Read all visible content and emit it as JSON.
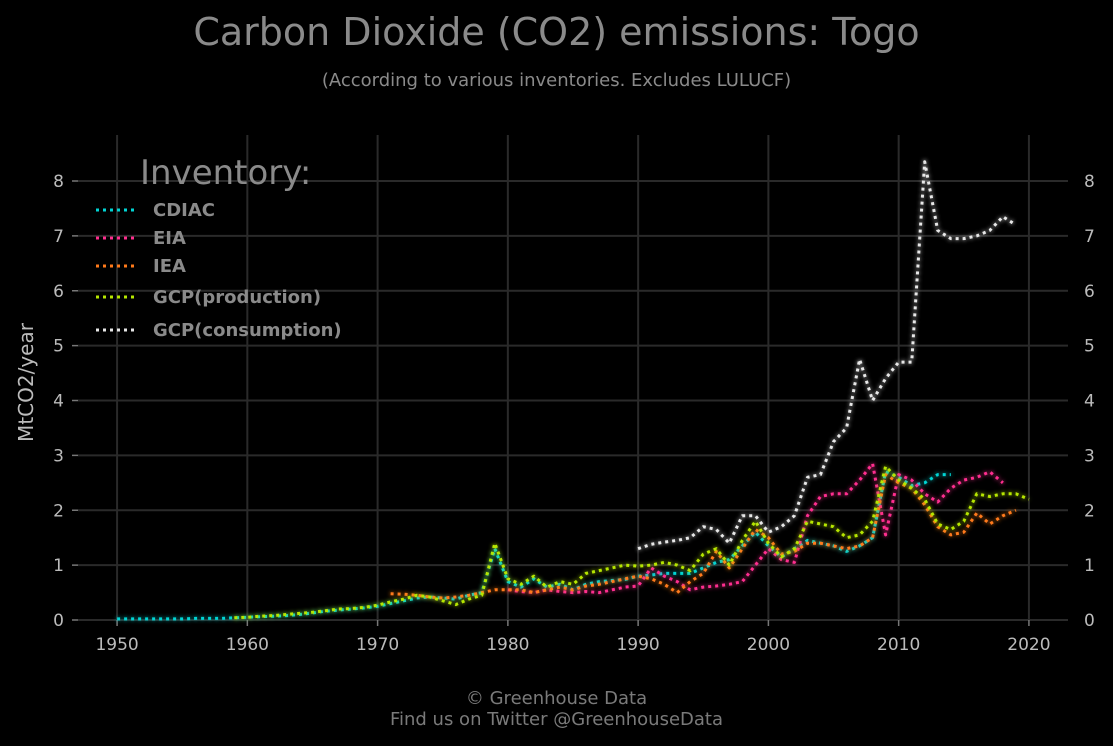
{
  "header": {
    "title": "Carbon Dioxide (CO2) emissions: Togo",
    "subtitle": "(According to various inventories. Excludes LULUCF)"
  },
  "footer": {
    "line1": "© Greenhouse Data",
    "line2": "Find us on Twitter @GreenhouseData"
  },
  "chart_data": {
    "type": "line",
    "title": "Carbon Dioxide (CO2) emissions: Togo",
    "subtitle": "(According to various inventories. Excludes LULUCF)",
    "xlabel": "",
    "ylabel": "MtCO2/year",
    "xlim": [
      1947,
      2023
    ],
    "ylim": [
      0,
      8.8
    ],
    "x_ticks": [
      1950,
      1960,
      1970,
      1980,
      1990,
      2000,
      2010,
      2020
    ],
    "y_ticks": [
      0,
      1,
      2,
      3,
      4,
      5,
      6,
      7,
      8
    ],
    "grid": true,
    "legend_title": "Inventory:",
    "legend_position": "top-left",
    "series": [
      {
        "name": "CDIAC",
        "color": "#00d4d4",
        "x": [
          1950,
          1951,
          1952,
          1953,
          1954,
          1955,
          1956,
          1957,
          1958,
          1959,
          1960,
          1961,
          1962,
          1963,
          1964,
          1965,
          1966,
          1967,
          1968,
          1969,
          1970,
          1971,
          1972,
          1973,
          1974,
          1975,
          1976,
          1977,
          1978,
          1979,
          1980,
          1981,
          1982,
          1983,
          1984,
          1985,
          1986,
          1987,
          1988,
          1989,
          1990,
          1991,
          1992,
          1993,
          1994,
          1995,
          1996,
          1997,
          1998,
          1999,
          2000,
          2001,
          2002,
          2003,
          2004,
          2005,
          2006,
          2007,
          2008,
          2009,
          2010,
          2011,
          2012,
          2013,
          2014
        ],
        "values": [
          0.02,
          0.02,
          0.02,
          0.02,
          0.02,
          0.02,
          0.03,
          0.03,
          0.03,
          0.04,
          0.05,
          0.06,
          0.07,
          0.08,
          0.1,
          0.13,
          0.16,
          0.18,
          0.2,
          0.22,
          0.25,
          0.3,
          0.35,
          0.4,
          0.42,
          0.4,
          0.38,
          0.45,
          0.5,
          1.3,
          0.7,
          0.6,
          0.75,
          0.6,
          0.65,
          0.55,
          0.65,
          0.7,
          0.72,
          0.74,
          0.8,
          0.82,
          0.85,
          0.85,
          0.85,
          0.95,
          1.05,
          1.1,
          1.35,
          1.6,
          1.35,
          1.15,
          1.3,
          1.45,
          1.4,
          1.35,
          1.25,
          1.35,
          1.5,
          2.7,
          2.6,
          2.45,
          2.5,
          2.65,
          2.65
        ]
      },
      {
        "name": "EIA",
        "color": "#ff2e8f",
        "x": [
          1980,
          1981,
          1982,
          1983,
          1984,
          1985,
          1986,
          1987,
          1988,
          1989,
          1990,
          1991,
          1992,
          1993,
          1994,
          1995,
          1996,
          1997,
          1998,
          1999,
          2000,
          2001,
          2002,
          2003,
          2004,
          2005,
          2006,
          2007,
          2008,
          2009,
          2010,
          2011,
          2012,
          2013,
          2014,
          2015,
          2016,
          2017,
          2018
        ],
        "values": [
          0.55,
          0.52,
          0.5,
          0.55,
          0.52,
          0.5,
          0.52,
          0.5,
          0.55,
          0.6,
          0.62,
          0.95,
          0.8,
          0.7,
          0.55,
          0.6,
          0.62,
          0.65,
          0.7,
          1.0,
          1.3,
          1.1,
          1.05,
          1.9,
          2.25,
          2.3,
          2.3,
          2.55,
          2.85,
          1.55,
          2.65,
          2.55,
          2.3,
          2.15,
          2.4,
          2.55,
          2.6,
          2.7,
          2.5
        ]
      },
      {
        "name": "IEA",
        "color": "#ff7a1a",
        "x": [
          1971,
          1972,
          1973,
          1974,
          1975,
          1976,
          1977,
          1978,
          1979,
          1980,
          1981,
          1982,
          1983,
          1984,
          1985,
          1986,
          1987,
          1988,
          1989,
          1990,
          1991,
          1992,
          1993,
          1994,
          1995,
          1996,
          1997,
          1998,
          1999,
          2000,
          2001,
          2002,
          2003,
          2004,
          2005,
          2006,
          2007,
          2008,
          2009,
          2010,
          2011,
          2012,
          2013,
          2014,
          2015,
          2016,
          2017,
          2018,
          2019
        ],
        "values": [
          0.48,
          0.47,
          0.45,
          0.42,
          0.4,
          0.42,
          0.45,
          0.5,
          0.55,
          0.55,
          0.55,
          0.5,
          0.55,
          0.6,
          0.55,
          0.62,
          0.65,
          0.7,
          0.75,
          0.8,
          0.75,
          0.65,
          0.5,
          0.7,
          0.85,
          1.25,
          0.95,
          1.3,
          1.65,
          1.5,
          1.2,
          1.25,
          1.4,
          1.4,
          1.35,
          1.3,
          1.35,
          1.5,
          2.65,
          2.5,
          2.4,
          2.1,
          1.7,
          1.55,
          1.6,
          1.95,
          1.75,
          1.9,
          2.0
        ]
      },
      {
        "name": "GCP(production)",
        "color": "#b6e600",
        "x": [
          1959,
          1960,
          1961,
          1962,
          1963,
          1964,
          1965,
          1966,
          1967,
          1968,
          1969,
          1970,
          1971,
          1972,
          1973,
          1974,
          1975,
          1976,
          1977,
          1978,
          1979,
          1980,
          1981,
          1982,
          1983,
          1984,
          1985,
          1986,
          1987,
          1988,
          1989,
          1990,
          1991,
          1992,
          1993,
          1994,
          1995,
          1996,
          1997,
          1998,
          1999,
          2000,
          2001,
          2002,
          2003,
          2004,
          2005,
          2006,
          2007,
          2008,
          2009,
          2010,
          2011,
          2012,
          2013,
          2014,
          2015,
          2016,
          2017,
          2018,
          2019,
          2020
        ],
        "values": [
          0.04,
          0.05,
          0.07,
          0.08,
          0.1,
          0.12,
          0.14,
          0.17,
          0.2,
          0.21,
          0.23,
          0.27,
          0.33,
          0.38,
          0.45,
          0.42,
          0.35,
          0.28,
          0.38,
          0.45,
          1.4,
          0.75,
          0.65,
          0.8,
          0.6,
          0.7,
          0.65,
          0.85,
          0.9,
          0.95,
          1.0,
          0.98,
          1.0,
          1.05,
          1.0,
          0.9,
          1.2,
          1.3,
          1.0,
          1.45,
          1.8,
          1.4,
          1.15,
          1.3,
          1.8,
          1.75,
          1.7,
          1.5,
          1.55,
          1.8,
          2.8,
          2.55,
          2.4,
          2.2,
          1.75,
          1.65,
          1.8,
          2.3,
          2.25,
          2.3,
          2.3,
          2.2
        ]
      },
      {
        "name": "GCP(consumption)",
        "color": "#e8e8e8",
        "x": [
          1990,
          1991,
          1992,
          1993,
          1994,
          1995,
          1996,
          1997,
          1998,
          1999,
          2000,
          2001,
          2002,
          2003,
          2004,
          2005,
          2006,
          2007,
          2008,
          2009,
          2010,
          2011,
          2012,
          2013,
          2014,
          2015,
          2016,
          2017,
          2018,
          2019
        ],
        "values": [
          1.3,
          1.38,
          1.42,
          1.45,
          1.5,
          1.7,
          1.65,
          1.4,
          1.9,
          1.9,
          1.6,
          1.7,
          1.9,
          2.6,
          2.65,
          3.25,
          3.5,
          4.75,
          4.0,
          4.4,
          4.7,
          4.7,
          8.35,
          7.1,
          6.95,
          6.95,
          7.0,
          7.1,
          7.35,
          7.2
        ]
      }
    ]
  }
}
